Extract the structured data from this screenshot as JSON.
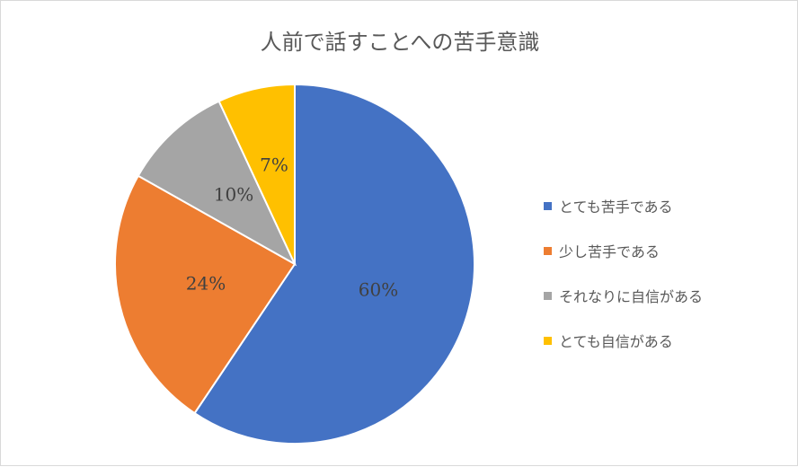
{
  "chart_data": {
    "type": "pie",
    "title": "人前で話すことへの苦手意識",
    "categories": [
      "とても苦手である",
      "少し苦手である",
      "それなりに自信がある",
      "とても自信がある"
    ],
    "values": [
      60,
      24,
      10,
      7
    ],
    "data_labels": [
      "60%",
      "24%",
      "10%",
      "7%"
    ],
    "colors": [
      "#4472c4",
      "#ed7d31",
      "#a5a5a5",
      "#ffc000"
    ],
    "legend_placement": "right"
  }
}
